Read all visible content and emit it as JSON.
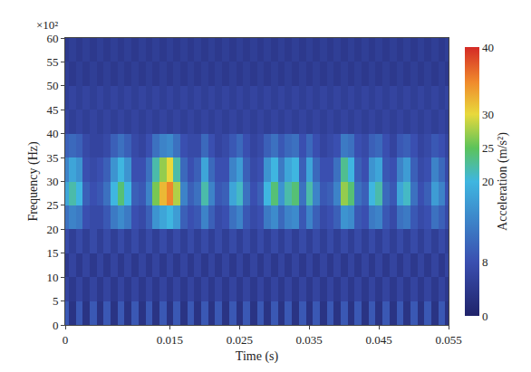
{
  "chart_data": {
    "type": "heatmap",
    "x_label": "Time (s)",
    "y_label": "Frequency (Hz)",
    "annotation": "×10²",
    "x": [
      0,
      0.001,
      0.002,
      0.003,
      0.004,
      0.005,
      0.006,
      0.007,
      0.008,
      0.009,
      0.01,
      0.011,
      0.012,
      0.013,
      0.014,
      0.015,
      0.016,
      0.017,
      0.018,
      0.019,
      0.02,
      0.021,
      0.022,
      0.023,
      0.024,
      0.025,
      0.026,
      0.027,
      0.028,
      0.029,
      0.03,
      0.031,
      0.032,
      0.033,
      0.034,
      0.035,
      0.036,
      0.037,
      0.038,
      0.039,
      0.04,
      0.041,
      0.042,
      0.043,
      0.044,
      0.045,
      0.046,
      0.047,
      0.048,
      0.049,
      0.05,
      0.051,
      0.052,
      0.053,
      0.054,
      0.055
    ],
    "y": [
      2.5,
      7.5,
      12.5,
      17.5,
      22.5,
      27.5,
      32.5,
      37.5,
      42.5,
      47.5,
      52.5,
      57.5
    ],
    "cells": [
      [
        9,
        3,
        9,
        3,
        9,
        3,
        9,
        3,
        9,
        3,
        9,
        3,
        9,
        3,
        9,
        3,
        9,
        3,
        9,
        3,
        9,
        3,
        9,
        3,
        9,
        3,
        9,
        3,
        9,
        3,
        9,
        3,
        9,
        3,
        9,
        3,
        9,
        3,
        9,
        3,
        9,
        3,
        9,
        3,
        9,
        3,
        9,
        3,
        9,
        3,
        9,
        3,
        9,
        3,
        9,
        3
      ],
      [
        6,
        4,
        6,
        4,
        6,
        4,
        6,
        4,
        6,
        4,
        6,
        4,
        6,
        4,
        6,
        4,
        6,
        4,
        6,
        4,
        6,
        4,
        6,
        4,
        6,
        4,
        6,
        4,
        6,
        4,
        6,
        4,
        6,
        4,
        6,
        4,
        6,
        4,
        6,
        4,
        6,
        4,
        6,
        4,
        6,
        4,
        6,
        4,
        6,
        4,
        6,
        4,
        6,
        4,
        6,
        4
      ],
      [
        4,
        6,
        4,
        6,
        4,
        6,
        4,
        6,
        4,
        6,
        4,
        6,
        4,
        6,
        4,
        6,
        4,
        6,
        4,
        6,
        4,
        6,
        4,
        6,
        4,
        6,
        4,
        6,
        4,
        6,
        4,
        6,
        4,
        6,
        4,
        6,
        4,
        6,
        4,
        6,
        4,
        6,
        4,
        6,
        4,
        6,
        4,
        6,
        4,
        6,
        4,
        6,
        4,
        6,
        4,
        6
      ],
      [
        7,
        5,
        7,
        5,
        7,
        5,
        7,
        5,
        7,
        5,
        7,
        5,
        7,
        5,
        7,
        5,
        7,
        5,
        7,
        5,
        7,
        5,
        7,
        5,
        7,
        5,
        7,
        5,
        7,
        5,
        7,
        5,
        7,
        5,
        7,
        5,
        7,
        5,
        7,
        5,
        7,
        5,
        7,
        5,
        7,
        5,
        7,
        5,
        7,
        5,
        7,
        5,
        7,
        5,
        7,
        5
      ],
      [
        12,
        14,
        13,
        8,
        7,
        7,
        9,
        13,
        15,
        13,
        8,
        7,
        10,
        16,
        18,
        20,
        17,
        10,
        8,
        9,
        14,
        10,
        7,
        8,
        12,
        14,
        9,
        7,
        8,
        13,
        15,
        11,
        14,
        15,
        9,
        14,
        10,
        7,
        8,
        10,
        16,
        15,
        9,
        8,
        13,
        14,
        9,
        7,
        12,
        13,
        9,
        7,
        8,
        12,
        10,
        7
      ],
      [
        18,
        22,
        20,
        10,
        8,
        9,
        12,
        20,
        24,
        20,
        10,
        9,
        14,
        26,
        32,
        35,
        28,
        14,
        10,
        12,
        22,
        14,
        9,
        10,
        18,
        21,
        12,
        8,
        10,
        20,
        24,
        16,
        22,
        24,
        12,
        22,
        14,
        9,
        10,
        14,
        27,
        24,
        12,
        10,
        20,
        22,
        11,
        9,
        18,
        21,
        12,
        8,
        10,
        17,
        14,
        8
      ],
      [
        14,
        18,
        16,
        8,
        7,
        8,
        10,
        16,
        20,
        16,
        8,
        8,
        12,
        22,
        27,
        30,
        22,
        11,
        8,
        10,
        18,
        11,
        8,
        8,
        14,
        17,
        10,
        7,
        8,
        16,
        20,
        13,
        18,
        20,
        10,
        18,
        11,
        8,
        8,
        12,
        23,
        20,
        10,
        8,
        16,
        18,
        9,
        8,
        14,
        17,
        10,
        7,
        8,
        14,
        11,
        7
      ],
      [
        10,
        11,
        10,
        7,
        6,
        6,
        7,
        10,
        12,
        10,
        7,
        6,
        8,
        12,
        14,
        15,
        12,
        8,
        7,
        7,
        11,
        8,
        6,
        7,
        9,
        11,
        8,
        6,
        7,
        10,
        12,
        9,
        11,
        12,
        8,
        11,
        8,
        6,
        7,
        8,
        13,
        12,
        8,
        7,
        10,
        11,
        8,
        6,
        9,
        10,
        8,
        6,
        7,
        9,
        8,
        6
      ],
      [
        6,
        5,
        6,
        5,
        6,
        5,
        6,
        5,
        6,
        5,
        6,
        5,
        6,
        5,
        6,
        5,
        6,
        5,
        6,
        5,
        6,
        5,
        6,
        5,
        6,
        5,
        6,
        5,
        6,
        5,
        6,
        5,
        6,
        5,
        6,
        5,
        6,
        5,
        6,
        5,
        6,
        5,
        6,
        5,
        6,
        5,
        6,
        5,
        6,
        5,
        6,
        5,
        6,
        5,
        6,
        5
      ],
      [
        5,
        6,
        5,
        6,
        5,
        6,
        5,
        6,
        5,
        6,
        5,
        6,
        5,
        6,
        5,
        6,
        5,
        6,
        5,
        6,
        5,
        6,
        5,
        6,
        5,
        6,
        5,
        6,
        5,
        6,
        5,
        6,
        5,
        6,
        5,
        6,
        5,
        6,
        5,
        6,
        5,
        6,
        5,
        6,
        5,
        6,
        5,
        6,
        5,
        6,
        5,
        6,
        5,
        6,
        5,
        6
      ],
      [
        5,
        4,
        5,
        4,
        5,
        4,
        5,
        4,
        5,
        4,
        5,
        4,
        5,
        4,
        5,
        4,
        5,
        4,
        5,
        4,
        5,
        4,
        5,
        4,
        5,
        4,
        5,
        4,
        5,
        4,
        5,
        4,
        5,
        4,
        5,
        4,
        5,
        4,
        5,
        4,
        5,
        4,
        5,
        4,
        5,
        4,
        5,
        4,
        5,
        4,
        5,
        4,
        5,
        4,
        5,
        4
      ],
      [
        4,
        5,
        4,
        5,
        4,
        5,
        4,
        5,
        4,
        5,
        4,
        5,
        4,
        5,
        4,
        5,
        4,
        5,
        4,
        5,
        4,
        5,
        4,
        5,
        4,
        5,
        4,
        5,
        4,
        5,
        4,
        5,
        4,
        5,
        4,
        5,
        4,
        5,
        4,
        5,
        4,
        5,
        4,
        5,
        4,
        5,
        4,
        5,
        4,
        5,
        4,
        5,
        4,
        5,
        4,
        5
      ]
    ],
    "xlim": [
      0,
      0.055
    ],
    "xticks": [
      0,
      0.015,
      0.025,
      0.035,
      0.045,
      0.055
    ],
    "ylim": [
      0,
      60
    ],
    "yticks": [
      0,
      5,
      10,
      15,
      20,
      25,
      30,
      35,
      40,
      45,
      50,
      55,
      60
    ],
    "colorbar": {
      "label": "Acceleration (m/s²)",
      "range": [
        0,
        40
      ],
      "ticks": [
        0,
        8,
        20,
        25,
        30,
        40
      ]
    }
  }
}
